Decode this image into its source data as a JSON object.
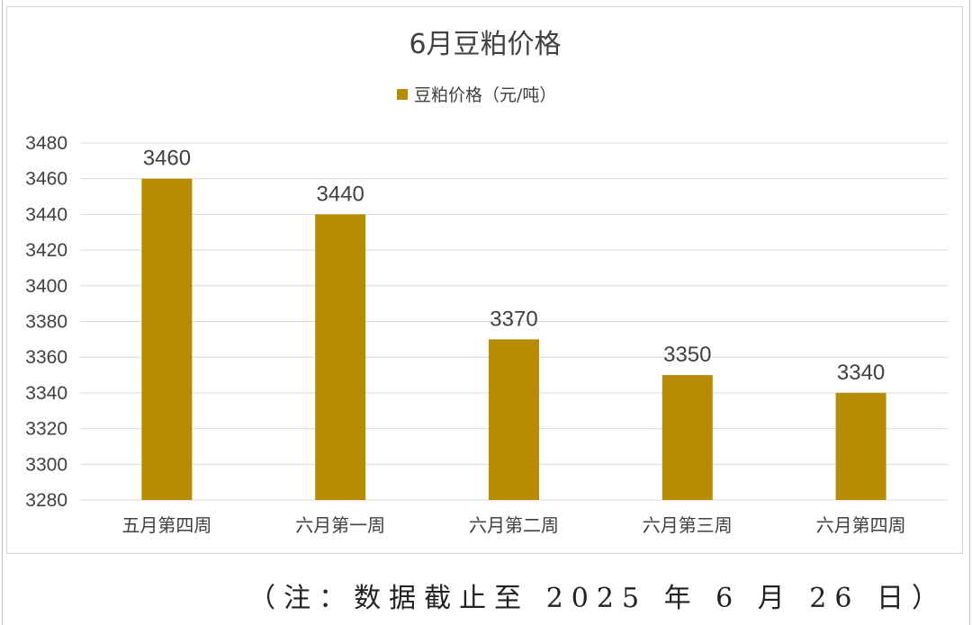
{
  "chart_data": {
    "type": "bar",
    "title": "6月豆粕价格",
    "categories": [
      "五月第四周",
      "六月第一周",
      "六月第二周",
      "六月第三周",
      "六月第四周"
    ],
    "series": [
      {
        "name": "豆粕价格（元/吨）",
        "values": [
          3460,
          3440,
          3370,
          3350,
          3340
        ],
        "color": "#b58c04"
      }
    ],
    "ylim": [
      3280,
      3480
    ],
    "yticks": [
      3280,
      3300,
      3320,
      3340,
      3360,
      3380,
      3400,
      3420,
      3440,
      3460,
      3480
    ],
    "grid": true,
    "legend_position": "top",
    "data_labels": true
  },
  "note": {
    "text": "（注：数据截止至 2025 年 6 月 26 日）"
  }
}
